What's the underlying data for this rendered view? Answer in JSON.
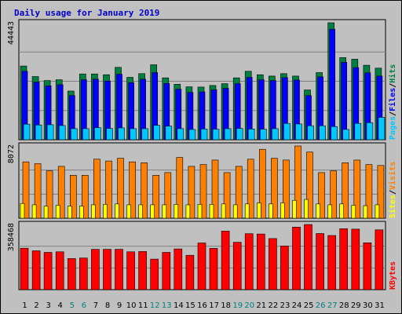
{
  "colors": {
    "pages": "#00c8ff",
    "files": "#0000ff",
    "hits": "#008040",
    "sites": "#ffff00",
    "visits": "#ff8000",
    "kbytes": "#ff0000",
    "weekday": "#000000",
    "weekend": "#008080",
    "title": "#0000c8"
  },
  "chart_data": {
    "type": "bar",
    "title": "Daily usage for January 2019",
    "x": [
      "1",
      "2",
      "3",
      "4",
      "5",
      "6",
      "7",
      "8",
      "9",
      "10",
      "11",
      "12",
      "13",
      "14",
      "15",
      "16",
      "17",
      "18",
      "19",
      "20",
      "21",
      "22",
      "23",
      "24",
      "25",
      "26",
      "27",
      "28",
      "29",
      "30",
      "31"
    ],
    "weekend_days": [
      "5",
      "6",
      "12",
      "13",
      "19",
      "20",
      "26",
      "27"
    ],
    "panels": [
      {
        "name": "pages-files-hits",
        "max_label": "44443",
        "ymax": 44443,
        "series": [
          {
            "name": "Hits",
            "values": [
              28000,
              24000,
              22500,
              22800,
              18500,
              25000,
              25000,
              24700,
              27500,
              23700,
              25100,
              28500,
              23500,
              21100,
              20100,
              20000,
              20600,
              21300,
              23500,
              26000,
              24700,
              24200,
              25100,
              24200,
              18900,
              25500,
              44443,
              31200,
              30600,
              28300,
              27200
            ]
          },
          {
            "name": "Files",
            "values": [
              26000,
              21900,
              20500,
              20900,
              16800,
              22800,
              23000,
              22300,
              24900,
              21700,
              23000,
              25500,
              21400,
              19200,
              18000,
              18200,
              19000,
              19500,
              21300,
              23700,
              22800,
              22500,
              23600,
              22700,
              16800,
              23900,
              42000,
              29400,
              27400,
              25400,
              24200
            ]
          },
          {
            "name": "Pages",
            "values": [
              5900,
              5600,
              5700,
              5400,
              4200,
              4200,
              4600,
              4300,
              4500,
              4200,
              4200,
              5500,
              5200,
              4200,
              3900,
              4100,
              4000,
              4200,
              4300,
              4100,
              4000,
              4200,
              6200,
              6000,
              5300,
              5300,
              5000,
              3900,
              6200,
              6500,
              8500
            ]
          }
        ],
        "side_labels": [
          "Pages",
          "Files",
          "Hits"
        ]
      },
      {
        "name": "sites-visits",
        "max_label": "8072",
        "ymax": 8072,
        "series": [
          {
            "name": "Visits",
            "values": [
              6300,
              6100,
              5300,
              5800,
              4800,
              4800,
              6600,
              6400,
              6700,
              6300,
              6200,
              4800,
              5100,
              6800,
              5800,
              6000,
              6500,
              5100,
              5800,
              6600,
              7700,
              6700,
              6500,
              8072,
              7400,
              5100,
              5300,
              6200,
              6500,
              6000,
              5900
            ]
          },
          {
            "name": "Sites",
            "values": [
              1650,
              1500,
              1350,
              1450,
              1350,
              1350,
              1500,
              1550,
              1600,
              1500,
              1500,
              1500,
              1500,
              1550,
              1500,
              1550,
              1550,
              1600,
              1500,
              1600,
              1700,
              1600,
              1700,
              2000,
              2100,
              1600,
              1500,
              1600,
              1450,
              1400,
              1500
            ]
          }
        ],
        "side_labels": [
          "Sites",
          "Visits"
        ]
      },
      {
        "name": "kbytes",
        "max_label": "358468",
        "ymax": 358468,
        "series": [
          {
            "name": "KBytes",
            "values": [
              228000,
              214000,
              205000,
              208000,
              171000,
              174000,
              222000,
              222000,
              222000,
              208000,
              210000,
              168000,
              205000,
              224000,
              189000,
              257000,
              227000,
              322000,
              261000,
              308000,
              306000,
              281000,
              240000,
              344000,
              358468,
              309000,
              298000,
              335000,
              333000,
              258000,
              329000
            ]
          }
        ],
        "side_labels": [
          "KBytes"
        ]
      }
    ]
  }
}
